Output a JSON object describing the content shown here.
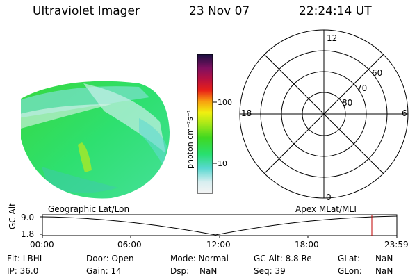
{
  "header": {
    "instrument": "Ultraviolet Imager",
    "date": "23 Nov 07",
    "time": "22:24:14 UT"
  },
  "colorbar": {
    "unit_label": "photon cm⁻²s⁻¹",
    "ticks": [
      "100",
      "10"
    ]
  },
  "polar_plot": {
    "mlt_labels": [
      "12",
      "18",
      "6",
      "0"
    ],
    "mlat_labels": [
      "60",
      "70",
      "80"
    ]
  },
  "timeline": {
    "left_label": "Geographic Lat/Lon",
    "right_label": "Apex  MLat/MLT",
    "axis_label": "GC Alt",
    "y_ticks": [
      "9.0",
      "1.8"
    ],
    "x_ticks": [
      "00:00",
      "06:00",
      "12:00",
      "18:00",
      "23:59"
    ]
  },
  "status": {
    "filter": "Flt: LBHL",
    "ip": "IP: 36.0",
    "door": "Door: Open",
    "gain": "Gain: 14",
    "mode": "Mode: Normal",
    "dsp": "Dsp:",
    "dsp_value": "NaN",
    "gc_alt": "GC Alt: 8.8 Re",
    "seq": "Seq: 39",
    "glat": "GLat:",
    "glat_value": "NaN",
    "glon": "GLon:",
    "glon_value": "NaN"
  }
}
